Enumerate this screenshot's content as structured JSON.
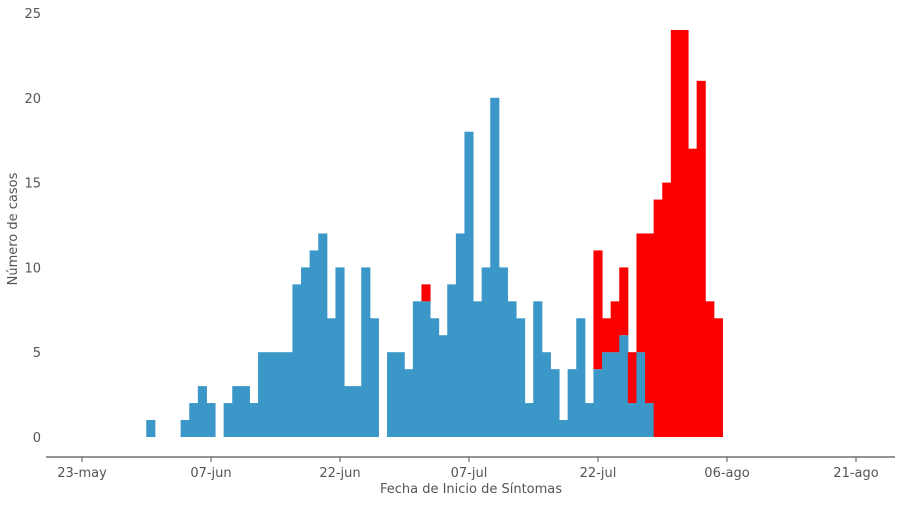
{
  "chart_data": {
    "type": "bar",
    "stacked": true,
    "title": "",
    "xlabel": "Fecha de Inicio de Síntomas",
    "ylabel": "Número de casos",
    "ylim": [
      0,
      25
    ],
    "yticks": [
      0,
      5,
      10,
      15,
      20,
      25
    ],
    "xlim": [
      "2020-05-20",
      "2020-09-02"
    ],
    "xticks": [
      {
        "date": "2020-05-23",
        "label": "23-may"
      },
      {
        "date": "2020-06-07",
        "label": "07-jun"
      },
      {
        "date": "2020-06-22",
        "label": "22-jun"
      },
      {
        "date": "2020-07-07",
        "label": "07-jul"
      },
      {
        "date": "2020-07-22",
        "label": "22-jul"
      },
      {
        "date": "2020-08-06",
        "label": "06-ago"
      },
      {
        "date": "2020-08-21",
        "label": "21-ago"
      }
    ],
    "grid": false,
    "colors": {
      "blue": "#3a97c8",
      "red": "#fa0000",
      "axis": "#555555"
    },
    "dates": [
      "2020-05-31",
      "2020-06-01",
      "2020-06-02",
      "2020-06-03",
      "2020-06-04",
      "2020-06-05",
      "2020-06-06",
      "2020-06-07",
      "2020-06-08",
      "2020-06-09",
      "2020-06-10",
      "2020-06-11",
      "2020-06-12",
      "2020-06-13",
      "2020-06-14",
      "2020-06-15",
      "2020-06-16",
      "2020-06-17",
      "2020-06-18",
      "2020-06-19",
      "2020-06-20",
      "2020-06-21",
      "2020-06-22",
      "2020-06-23",
      "2020-06-24",
      "2020-06-25",
      "2020-06-26",
      "2020-06-27",
      "2020-06-28",
      "2020-06-29",
      "2020-06-30",
      "2020-07-01",
      "2020-07-02",
      "2020-07-03",
      "2020-07-04",
      "2020-07-05",
      "2020-07-06",
      "2020-07-07",
      "2020-07-08",
      "2020-07-09",
      "2020-07-10",
      "2020-07-11",
      "2020-07-12",
      "2020-07-13",
      "2020-07-14",
      "2020-07-15",
      "2020-07-16",
      "2020-07-17",
      "2020-07-18",
      "2020-07-19",
      "2020-07-20",
      "2020-07-21",
      "2020-07-22",
      "2020-07-23",
      "2020-07-24",
      "2020-07-25",
      "2020-07-26",
      "2020-07-27",
      "2020-07-28",
      "2020-07-29",
      "2020-07-30",
      "2020-07-31",
      "2020-08-01",
      "2020-08-02",
      "2020-08-03",
      "2020-08-04",
      "2020-08-05"
    ],
    "series": [
      {
        "color": "#3a97c8",
        "values": [
          1,
          0,
          0,
          0,
          1,
          2,
          3,
          2,
          0,
          2,
          3,
          3,
          2,
          5,
          5,
          5,
          5,
          9,
          10,
          11,
          12,
          7,
          10,
          3,
          3,
          10,
          7,
          0,
          5,
          5,
          4,
          8,
          8,
          7,
          6,
          9,
          12,
          18,
          8,
          10,
          20,
          10,
          8,
          7,
          2,
          8,
          5,
          4,
          1,
          4,
          7,
          2,
          4,
          5,
          5,
          6,
          2,
          5,
          2,
          0,
          0,
          0,
          0,
          0,
          0,
          0,
          0
        ]
      },
      {
        "color": "#fa0000",
        "values": [
          0,
          0,
          0,
          0,
          0,
          0,
          0,
          0,
          0,
          0,
          0,
          0,
          0,
          0,
          0,
          0,
          0,
          0,
          0,
          0,
          0,
          0,
          0,
          0,
          0,
          0,
          0,
          0,
          0,
          0,
          0,
          0,
          1,
          0,
          0,
          0,
          0,
          0,
          0,
          0,
          0,
          0,
          0,
          0,
          0,
          0,
          0,
          0,
          0,
          0,
          0,
          0,
          7,
          2,
          3,
          4,
          3,
          7,
          10,
          14,
          15,
          24,
          24,
          17,
          21,
          8,
          7
        ]
      }
    ]
  }
}
